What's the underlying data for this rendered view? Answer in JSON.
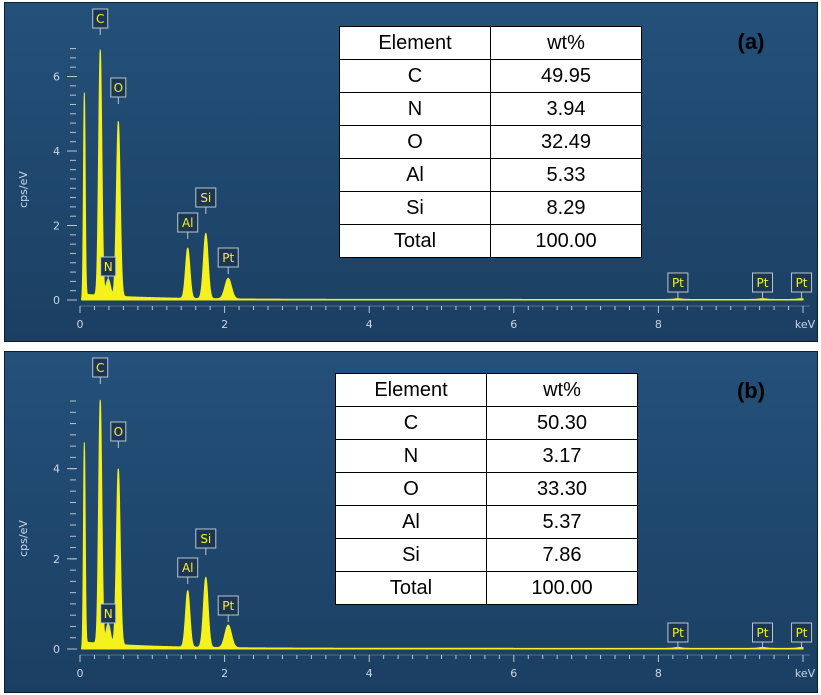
{
  "chart_data": [
    {
      "type": "line",
      "panel_label": "(a)",
      "ylabel": "cps/eV",
      "xunit": "keV",
      "xlim": [
        0,
        10
      ],
      "ylim": [
        0,
        6.9
      ],
      "xticks": [
        "0",
        "2",
        "4",
        "6",
        "8"
      ],
      "yticks": [
        "0",
        "2",
        "4",
        "6"
      ],
      "peaks": [
        {
          "label": "C",
          "x": 0.28,
          "y": 6.6
        },
        {
          "label": "N",
          "x": 0.39,
          "y": 0.45
        },
        {
          "label": "O",
          "x": 0.53,
          "y": 4.7
        },
        {
          "label": "Al",
          "x": 1.49,
          "y": 1.35
        },
        {
          "label": "Si",
          "x": 1.74,
          "y": 1.75
        },
        {
          "label": "Pt",
          "x": 2.05,
          "y": 0.55
        },
        {
          "label": "Pt",
          "x": 8.27,
          "y": 0.02
        },
        {
          "label": "Pt",
          "x": 9.44,
          "y": 0.02
        },
        {
          "label": "Pt",
          "x": 9.98,
          "y": 0.02
        }
      ],
      "table": {
        "headers": [
          "Element",
          "wt%"
        ],
        "rows": [
          [
            "C",
            "49.95"
          ],
          [
            "N",
            "3.94"
          ],
          [
            "O",
            "32.49"
          ],
          [
            "Al",
            "5.33"
          ],
          [
            "Si",
            "8.29"
          ]
        ],
        "total": [
          "Total",
          "100.00"
        ]
      }
    },
    {
      "type": "line",
      "panel_label": "(b)",
      "ylabel": "cps/eV",
      "xunit": "keV",
      "xlim": [
        0,
        10
      ],
      "ylim": [
        0,
        5.7
      ],
      "xticks": [
        "0",
        "2",
        "4",
        "6",
        "8"
      ],
      "yticks": [
        "0",
        "2",
        "4"
      ],
      "peaks": [
        {
          "label": "C",
          "x": 0.28,
          "y": 5.4
        },
        {
          "label": "N",
          "x": 0.39,
          "y": 0.45
        },
        {
          "label": "O",
          "x": 0.53,
          "y": 3.9
        },
        {
          "label": "Al",
          "x": 1.49,
          "y": 1.25
        },
        {
          "label": "Si",
          "x": 1.74,
          "y": 1.55
        },
        {
          "label": "Pt",
          "x": 2.05,
          "y": 0.5
        },
        {
          "label": "Pt",
          "x": 8.27,
          "y": 0.02
        },
        {
          "label": "Pt",
          "x": 9.44,
          "y": 0.02
        },
        {
          "label": "Pt",
          "x": 9.98,
          "y": 0.02
        }
      ],
      "table": {
        "headers": [
          "Element",
          "wt%"
        ],
        "rows": [
          [
            "C",
            "50.30"
          ],
          [
            "N",
            "3.17"
          ],
          [
            "O",
            "33.30"
          ],
          [
            "Al",
            "5.37"
          ],
          [
            "Si",
            "7.86"
          ]
        ],
        "total": [
          "Total",
          "100.00"
        ]
      }
    }
  ],
  "colors": {
    "spectrum": "#f4f11c",
    "background": "#214a72",
    "axis": "#b9c6d3",
    "peak_label_text": "#f2ee3a"
  }
}
